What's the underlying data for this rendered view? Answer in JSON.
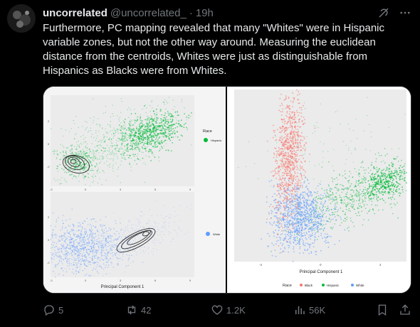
{
  "tweet": {
    "display_name": "uncorrelated",
    "handle": "@uncorrelated_",
    "separator": "·",
    "time": "19h",
    "text_lines": [
      "Furthermore, PC mapping revealed that many \"Whites\" were in Hispanic",
      "variable zones, but not the other way around. Measuring the euclidean",
      "distance from the centroids, Whites were just as distinguishable from",
      "Hispanics as Blacks were from Whites."
    ]
  },
  "actions": {
    "replies": "5",
    "retweets": "42",
    "likes": "1.2K",
    "views": "56K"
  },
  "icons": [
    "grok-icon",
    "more-icon",
    "reply-icon",
    "retweet-icon",
    "like-icon",
    "views-icon",
    "bookmark-icon",
    "share-icon"
  ],
  "colors": {
    "background": "#000000",
    "text": "#e7e9ea",
    "muted": "#71767b",
    "black_group": "#f8766d",
    "hispanic_group": "#00ba38",
    "white_group": "#619cff"
  },
  "figure": {
    "top_left_legend_title": "Race",
    "top_left_legend_item": "Hispanic",
    "bottom_left_legend_item": "White",
    "bottom_left_xlabel": "Principal Component 1",
    "right_xlabel": "Principal Component 1",
    "right_legend_title": "Race",
    "right_legend_items": [
      "Black",
      "Hispanic",
      "White"
    ],
    "left_x_ticks": [
      "-3",
      "0",
      "3",
      "6",
      "9"
    ],
    "left_y_ticks": [
      "2",
      "0",
      "-2"
    ],
    "right_x_ticks": [
      "-4",
      "0",
      "4"
    ]
  }
}
